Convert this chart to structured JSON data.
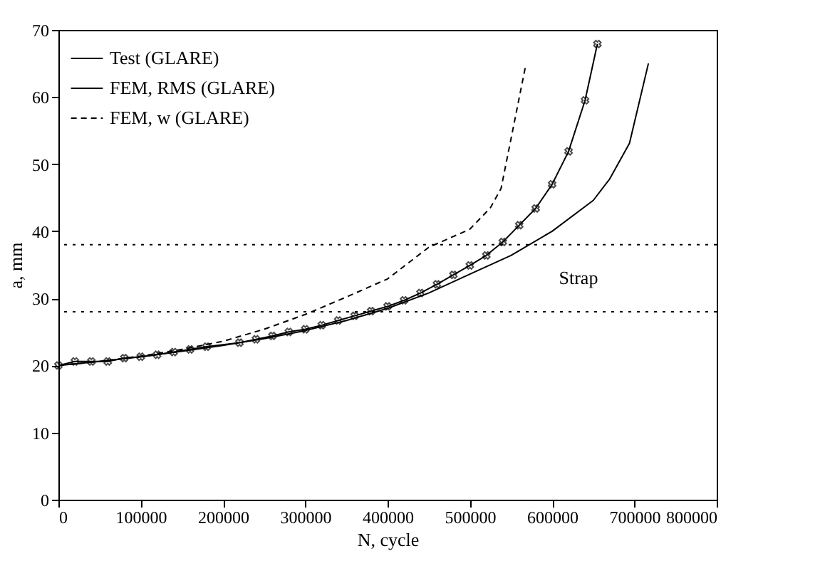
{
  "chart_data": {
    "type": "line",
    "xlabel": "N, cycle",
    "ylabel": "a, mm",
    "xlim": [
      0,
      800000
    ],
    "ylim": [
      0,
      70
    ],
    "xticks": [
      0,
      100000,
      200000,
      300000,
      400000,
      500000,
      600000,
      700000,
      800000
    ],
    "yticks": [
      0,
      10,
      20,
      30,
      40,
      50,
      60,
      70
    ],
    "grid": false,
    "legend": "top left",
    "series": [
      {
        "name": "Test (GLARE)",
        "color": "#000000",
        "marker": "cross",
        "line_style": "solid",
        "x": [
          0,
          20000,
          40000,
          60000,
          80000,
          100000,
          120000,
          140000,
          160000,
          180000,
          220000,
          240000,
          260000,
          280000,
          300000,
          320000,
          340000,
          360000,
          380000,
          400000,
          420000,
          440000,
          460000,
          480000,
          500000,
          520000,
          540000,
          560000,
          580000,
          600000,
          620000,
          640000,
          655000
        ],
        "values": [
          20.0,
          20.6,
          20.6,
          20.6,
          21.1,
          21.3,
          21.6,
          22.0,
          22.4,
          22.8,
          23.4,
          23.9,
          24.4,
          25.0,
          25.4,
          26.0,
          26.7,
          27.4,
          28.1,
          28.8,
          29.7,
          30.8,
          32.1,
          33.5,
          34.9,
          36.4,
          38.4,
          40.9,
          43.4,
          47.0,
          51.9,
          59.5,
          67.9
        ]
      },
      {
        "name": "FEM, RMS (GLARE)",
        "color": "#000000",
        "marker": "none",
        "line_style": "solid",
        "x": [
          0,
          50000,
          100000,
          150000,
          200000,
          250000,
          300000,
          350000,
          400000,
          450000,
          500000,
          550000,
          600000,
          650000,
          670000,
          694000,
          717000
        ],
        "values": [
          20.0,
          20.6,
          21.3,
          22.1,
          23.0,
          24.0,
          25.2,
          26.7,
          28.5,
          30.8,
          33.6,
          36.4,
          40.0,
          44.6,
          47.8,
          53.1,
          65.0
        ]
      },
      {
        "name": "FEM, w (GLARE)",
        "color": "#000000",
        "marker": "none",
        "line_style": "dashed",
        "x": [
          0,
          50000,
          100000,
          150000,
          200000,
          250000,
          300000,
          350000,
          400000,
          450000,
          500000,
          525000,
          538000,
          553000,
          568000
        ],
        "values": [
          20.0,
          20.6,
          21.4,
          22.4,
          23.6,
          25.4,
          27.6,
          30.2,
          32.9,
          37.6,
          40.3,
          43.5,
          46.4,
          55.6,
          64.8
        ]
      }
    ],
    "ref_lines": [
      {
        "axis": "y",
        "value": 28,
        "line_style": "dotted",
        "color": "#000000"
      },
      {
        "axis": "y",
        "value": 38,
        "line_style": "dotted",
        "color": "#000000"
      }
    ],
    "annotations": [
      "Strap"
    ]
  }
}
